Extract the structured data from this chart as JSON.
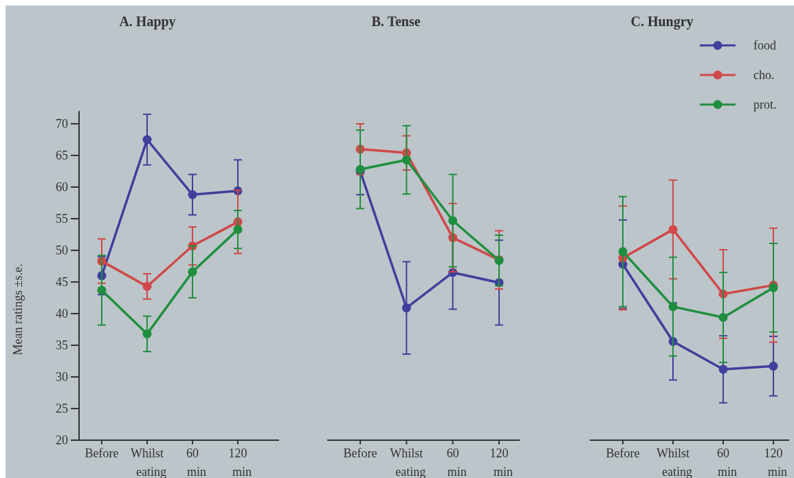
{
  "chart_data": [
    {
      "type": "line",
      "title": "A. Happy",
      "ylabel": "Mean ratings ±s.e.",
      "categories": [
        "Before",
        "Whilst eating",
        "60 min",
        "120 min"
      ],
      "ylim": [
        20,
        72
      ],
      "yticks": [
        20,
        25,
        30,
        35,
        40,
        45,
        50,
        55,
        60,
        65,
        70
      ],
      "marker": "circle",
      "legend": false,
      "series": [
        {
          "color": "#3f3f9c",
          "values": [
            46,
            67.5,
            58.8,
            59.4
          ],
          "errors": [
            3,
            4,
            3.2,
            4.9
          ]
        },
        {
          "color": "#d04848",
          "values": [
            48.3,
            44.3,
            50.7,
            54.5
          ],
          "errors": [
            3.5,
            2,
            3,
            5
          ]
        },
        {
          "color": "#1f8f3f",
          "values": [
            43.7,
            36.8,
            46.6,
            53.3
          ],
          "errors": [
            5.5,
            2.8,
            4.1,
            3
          ]
        }
      ]
    },
    {
      "type": "line",
      "title": "B. Tense",
      "categories": [
        "Before",
        "Whilst eating",
        "60 min",
        "120 min"
      ],
      "ylim": [
        20,
        70
      ],
      "yticks": [
        20,
        25,
        30,
        35,
        40,
        45,
        50,
        55,
        60,
        65,
        70
      ],
      "tick_labels": "x",
      "marker": "circle",
      "legend": false,
      "series": [
        {
          "color": "#3f3f9c",
          "values": [
            62.5,
            40.9,
            46.5,
            44.9
          ],
          "errors": [
            3.7,
            7.3,
            5.8,
            6.7
          ]
        },
        {
          "color": "#d04848",
          "values": [
            66,
            65.4,
            52,
            48.5
          ],
          "errors": [
            4,
            2.7,
            5.4,
            4.6
          ]
        },
        {
          "color": "#1f8f3f",
          "values": [
            62.8,
            64.3,
            54.7,
            48.4
          ],
          "errors": [
            6.2,
            5.4,
            7.3,
            4
          ]
        }
      ]
    },
    {
      "type": "line",
      "title": "C. Hungry",
      "categories": [
        "Before",
        "Whilst eating",
        "60 min",
        "120 min"
      ],
      "ylim": [
        20,
        70
      ],
      "yticks": [
        20,
        25,
        30,
        35,
        40,
        45,
        50,
        55,
        60,
        65,
        70
      ],
      "tick_labels": "x",
      "marker": "circle",
      "legend": "top right",
      "series": [
        {
          "name": "food",
          "color": "#3f3f9c",
          "values": [
            47.8,
            35.6,
            31.2,
            31.7
          ],
          "errors": [
            7,
            6.1,
            5.3,
            4.7
          ]
        },
        {
          "name": "cho.",
          "color": "#d04848",
          "values": [
            48.8,
            53.3,
            43.1,
            44.5
          ],
          "errors": [
            8.2,
            7.8,
            7,
            9
          ]
        },
        {
          "name": "prot.",
          "color": "#1f8f3f",
          "values": [
            49.8,
            41.1,
            39.4,
            44.1
          ],
          "errors": [
            8.7,
            7.8,
            7.1,
            7
          ]
        }
      ]
    }
  ]
}
